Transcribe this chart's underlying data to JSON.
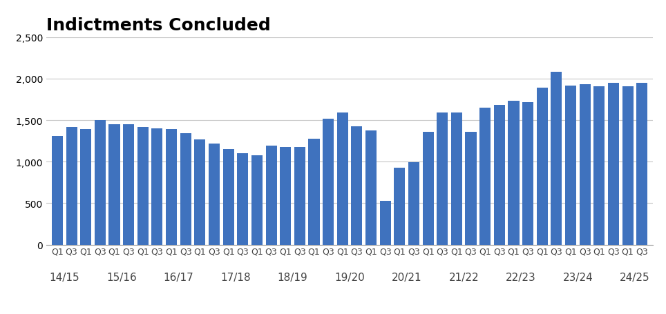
{
  "title": "Indictments Concluded",
  "bar_color": "#3F72BE",
  "values": [
    1310,
    1420,
    1390,
    1500,
    1450,
    1450,
    1420,
    1400,
    1390,
    1340,
    1270,
    1220,
    1150,
    1100,
    1075,
    1190,
    1180,
    1175,
    1280,
    1520,
    1590,
    1430,
    1380,
    530,
    930,
    990,
    1360,
    1590,
    1590,
    1360,
    1650,
    1680,
    1730,
    1720,
    1890,
    2080,
    1920,
    1930,
    1910,
    1950,
    1910,
    1950
  ],
  "quarter_labels": [
    "Q1",
    "Q3",
    "Q1",
    "Q3",
    "Q1",
    "Q3",
    "Q1",
    "Q3",
    "Q1",
    "Q3",
    "Q1",
    "Q3",
    "Q1",
    "Q3",
    "Q1",
    "Q3",
    "Q1",
    "Q3",
    "Q1",
    "Q3",
    "Q1",
    "Q3",
    "Q1",
    "Q3",
    "Q1",
    "Q3",
    "Q1",
    "Q3",
    "Q1",
    "Q3",
    "Q1",
    "Q3",
    "Q1",
    "Q3",
    "Q1",
    "Q3",
    "Q1",
    "Q3",
    "Q1",
    "Q3",
    "Q1",
    "Q3"
  ],
  "year_labels": [
    "14/15",
    "15/16",
    "16/17",
    "17/18",
    "18/19",
    "19/20",
    "20/21",
    "21/22",
    "22/23",
    "23/24",
    "24/25"
  ],
  "year_positions": [
    0.5,
    4.5,
    8.5,
    12.5,
    16.5,
    20.5,
    24.5,
    28.5,
    32.5,
    36.5,
    40.5
  ],
  "ylim": [
    0,
    2500
  ],
  "yticks": [
    0,
    500,
    1000,
    1500,
    2000,
    2500
  ],
  "background_color": "#FFFFFF",
  "grid_color": "#C8C8C8",
  "title_fontsize": 18,
  "tick_fontsize": 10,
  "year_label_fontsize": 11
}
